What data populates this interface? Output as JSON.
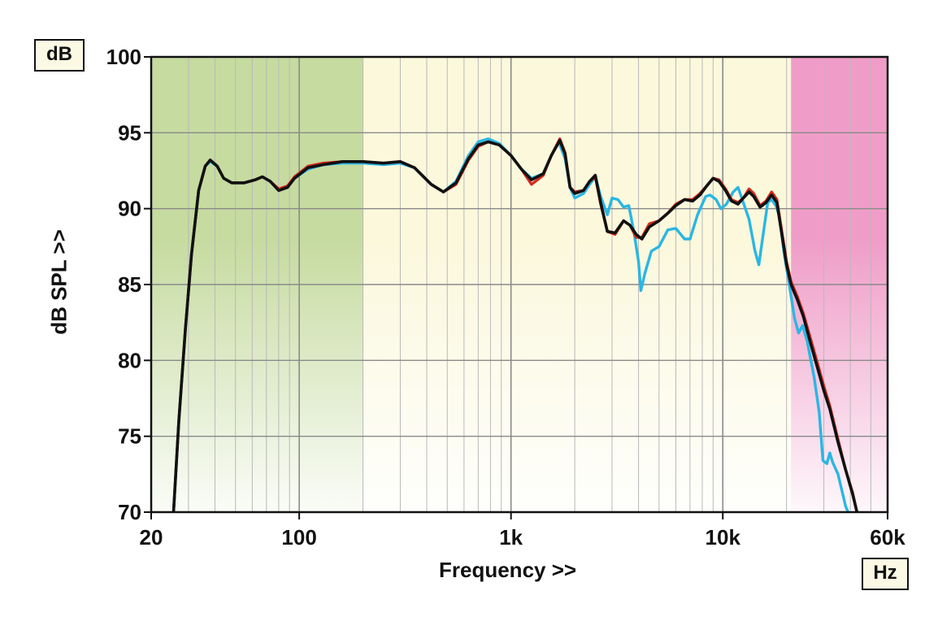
{
  "chart_data": {
    "type": "line",
    "xscale": "log",
    "xlim": [
      20,
      60000
    ],
    "ylim": [
      70,
      100
    ],
    "xlabel": "Frequency >>",
    "ylabel": "dB SPL >>",
    "x_unit": "Hz",
    "y_unit": "dB",
    "grid": true,
    "x_ticks": [
      {
        "value": 20,
        "label": "20"
      },
      {
        "value": 100,
        "label": "100"
      },
      {
        "value": 1000,
        "label": "1k"
      },
      {
        "value": 10000,
        "label": "10k"
      },
      {
        "value": 60000,
        "label": "60k"
      }
    ],
    "y_ticks": [
      {
        "value": 70,
        "label": "70"
      },
      {
        "value": 75,
        "label": "75"
      },
      {
        "value": 80,
        "label": "80"
      },
      {
        "value": 85,
        "label": "85"
      },
      {
        "value": 90,
        "label": "90"
      },
      {
        "value": 95,
        "label": "95"
      },
      {
        "value": 100,
        "label": "100"
      }
    ],
    "bands": [
      {
        "from": 20,
        "to": 200,
        "color": "#c6dba0"
      },
      {
        "from": 200,
        "to": 21000,
        "color": "#fbf8dc"
      },
      {
        "from": 21000,
        "to": 60000,
        "color": "#ef9dc8"
      }
    ],
    "series": [
      {
        "color": "#2ab6e3",
        "points": [
          [
            25.5,
            70
          ],
          [
            27,
            76
          ],
          [
            29,
            82
          ],
          [
            31,
            87
          ],
          [
            33.5,
            91.2
          ],
          [
            36,
            92.8
          ],
          [
            38,
            93.1
          ],
          [
            41,
            92.8
          ],
          [
            44,
            92
          ],
          [
            48,
            91.7
          ],
          [
            55,
            91.7
          ],
          [
            62,
            91.9
          ],
          [
            67,
            92.1
          ],
          [
            73,
            91.8
          ],
          [
            80,
            91.2
          ],
          [
            88,
            91.4
          ],
          [
            95,
            92
          ],
          [
            110,
            92.6
          ],
          [
            130,
            92.9
          ],
          [
            160,
            93
          ],
          [
            200,
            93
          ],
          [
            250,
            92.9
          ],
          [
            300,
            93
          ],
          [
            350,
            92.7
          ],
          [
            420,
            91.6
          ],
          [
            480,
            91.1
          ],
          [
            550,
            91.8
          ],
          [
            630,
            93.5
          ],
          [
            700,
            94.4
          ],
          [
            780,
            94.6
          ],
          [
            880,
            94.3
          ],
          [
            1000,
            93.5
          ],
          [
            1120,
            92.6
          ],
          [
            1250,
            92
          ],
          [
            1420,
            92.3
          ],
          [
            1550,
            93.5
          ],
          [
            1680,
            94.4
          ],
          [
            1800,
            93.3
          ],
          [
            1900,
            91.4
          ],
          [
            2000,
            90.7
          ],
          [
            2200,
            91
          ],
          [
            2350,
            91.6
          ],
          [
            2500,
            92.1
          ],
          [
            2650,
            90.8
          ],
          [
            2850,
            89.6
          ],
          [
            3000,
            90.7
          ],
          [
            3200,
            90.6
          ],
          [
            3400,
            90.1
          ],
          [
            3600,
            90.2
          ],
          [
            3800,
            88.5
          ],
          [
            4000,
            86.5
          ],
          [
            4100,
            84.6
          ],
          [
            4300,
            85.8
          ],
          [
            4600,
            87.2
          ],
          [
            5000,
            87.5
          ],
          [
            5500,
            88.6
          ],
          [
            6000,
            88.7
          ],
          [
            6600,
            88
          ],
          [
            7000,
            88
          ],
          [
            7600,
            89.6
          ],
          [
            8300,
            90.8
          ],
          [
            8700,
            90.9
          ],
          [
            9300,
            90.6
          ],
          [
            9800,
            90
          ],
          [
            10400,
            90.3
          ],
          [
            11200,
            91.1
          ],
          [
            11800,
            91.4
          ],
          [
            12500,
            90.4
          ],
          [
            13300,
            89.3
          ],
          [
            14200,
            87.2
          ],
          [
            14800,
            86.3
          ],
          [
            15400,
            88
          ],
          [
            16300,
            90.4
          ],
          [
            17000,
            90.6
          ],
          [
            17800,
            90.2
          ],
          [
            18500,
            89.5
          ],
          [
            19500,
            87
          ],
          [
            20600,
            85
          ],
          [
            21800,
            82.8
          ],
          [
            22800,
            81.8
          ],
          [
            23800,
            82.3
          ],
          [
            25000,
            81.3
          ],
          [
            27000,
            78.9
          ],
          [
            28500,
            76.6
          ],
          [
            29700,
            73.4
          ],
          [
            31000,
            73.2
          ],
          [
            32000,
            73.9
          ],
          [
            33000,
            73.3
          ],
          [
            35000,
            72.5
          ],
          [
            38000,
            70.4
          ],
          [
            39000,
            70
          ]
        ]
      },
      {
        "color": "#d42b1f",
        "points": [
          [
            25.5,
            70
          ],
          [
            27,
            76
          ],
          [
            29,
            82
          ],
          [
            31,
            87
          ],
          [
            33.5,
            91.2
          ],
          [
            36,
            92.8
          ],
          [
            38,
            93.2
          ],
          [
            41,
            92.8
          ],
          [
            44,
            92
          ],
          [
            48,
            91.7
          ],
          [
            55,
            91.7
          ],
          [
            62,
            91.9
          ],
          [
            67,
            92.1
          ],
          [
            73,
            91.8
          ],
          [
            80,
            91.3
          ],
          [
            88,
            91.5
          ],
          [
            95,
            92.1
          ],
          [
            110,
            92.8
          ],
          [
            130,
            93
          ],
          [
            160,
            93.1
          ],
          [
            200,
            93.1
          ],
          [
            250,
            93
          ],
          [
            300,
            93.1
          ],
          [
            350,
            92.7
          ],
          [
            420,
            91.6
          ],
          [
            480,
            91.1
          ],
          [
            550,
            91.6
          ],
          [
            630,
            93.2
          ],
          [
            700,
            94.1
          ],
          [
            780,
            94.4
          ],
          [
            880,
            94.2
          ],
          [
            1000,
            93.5
          ],
          [
            1120,
            92.6
          ],
          [
            1250,
            91.6
          ],
          [
            1420,
            92.2
          ],
          [
            1550,
            93.5
          ],
          [
            1700,
            94.6
          ],
          [
            1800,
            93.7
          ],
          [
            1900,
            91.4
          ],
          [
            2000,
            91.1
          ],
          [
            2200,
            91.2
          ],
          [
            2350,
            91.8
          ],
          [
            2500,
            92.1
          ],
          [
            2650,
            90.3
          ],
          [
            2850,
            88.5
          ],
          [
            3100,
            88.3
          ],
          [
            3400,
            89.2
          ],
          [
            3650,
            88.9
          ],
          [
            3900,
            88.1
          ],
          [
            4150,
            88.1
          ],
          [
            4500,
            89
          ],
          [
            5000,
            89.2
          ],
          [
            5500,
            89.7
          ],
          [
            6000,
            90.3
          ],
          [
            6600,
            90.6
          ],
          [
            7200,
            90.6
          ],
          [
            7800,
            91
          ],
          [
            8400,
            91.5
          ],
          [
            9000,
            92
          ],
          [
            9600,
            91.9
          ],
          [
            10300,
            91.3
          ],
          [
            11000,
            90.6
          ],
          [
            11800,
            90.4
          ],
          [
            12500,
            90.7
          ],
          [
            13300,
            91.3
          ],
          [
            14000,
            91
          ],
          [
            15000,
            90.2
          ],
          [
            16000,
            90.5
          ],
          [
            17000,
            91.1
          ],
          [
            18000,
            90.6
          ],
          [
            19000,
            88.5
          ],
          [
            20000,
            86.5
          ],
          [
            21000,
            85.2
          ],
          [
            22500,
            84.2
          ],
          [
            24000,
            83.1
          ],
          [
            26000,
            81.4
          ],
          [
            28000,
            79.8
          ],
          [
            30000,
            78.3
          ],
          [
            32000,
            77
          ],
          [
            35000,
            74.8
          ],
          [
            38000,
            72.8
          ],
          [
            41000,
            71.3
          ],
          [
            43000,
            70
          ]
        ]
      },
      {
        "color": "#111111",
        "points": [
          [
            25.5,
            70
          ],
          [
            27,
            76
          ],
          [
            29,
            82
          ],
          [
            31,
            87
          ],
          [
            33.5,
            91.2
          ],
          [
            36,
            92.8
          ],
          [
            38,
            93.2
          ],
          [
            41,
            92.8
          ],
          [
            44,
            92
          ],
          [
            48,
            91.7
          ],
          [
            55,
            91.7
          ],
          [
            62,
            91.9
          ],
          [
            67,
            92.1
          ],
          [
            73,
            91.8
          ],
          [
            80,
            91.2
          ],
          [
            88,
            91.4
          ],
          [
            95,
            92
          ],
          [
            110,
            92.7
          ],
          [
            130,
            92.9
          ],
          [
            160,
            93.1
          ],
          [
            200,
            93.1
          ],
          [
            250,
            93
          ],
          [
            300,
            93.1
          ],
          [
            350,
            92.7
          ],
          [
            420,
            91.6
          ],
          [
            480,
            91.1
          ],
          [
            550,
            91.7
          ],
          [
            630,
            93.3
          ],
          [
            700,
            94.2
          ],
          [
            780,
            94.4
          ],
          [
            880,
            94.2
          ],
          [
            1000,
            93.5
          ],
          [
            1120,
            92.6
          ],
          [
            1250,
            91.9
          ],
          [
            1420,
            92.3
          ],
          [
            1550,
            93.5
          ],
          [
            1700,
            94.5
          ],
          [
            1800,
            93.6
          ],
          [
            1900,
            91.4
          ],
          [
            2000,
            91
          ],
          [
            2200,
            91.2
          ],
          [
            2350,
            91.8
          ],
          [
            2500,
            92.2
          ],
          [
            2650,
            90.4
          ],
          [
            2850,
            88.5
          ],
          [
            3100,
            88.4
          ],
          [
            3400,
            89.2
          ],
          [
            3650,
            88.9
          ],
          [
            3900,
            88.3
          ],
          [
            4150,
            88
          ],
          [
            4500,
            88.8
          ],
          [
            5000,
            89.2
          ],
          [
            5500,
            89.7
          ],
          [
            6000,
            90.2
          ],
          [
            6600,
            90.6
          ],
          [
            7200,
            90.5
          ],
          [
            7800,
            90.9
          ],
          [
            8400,
            91.5
          ],
          [
            9000,
            92
          ],
          [
            9600,
            91.8
          ],
          [
            10300,
            91.2
          ],
          [
            11000,
            90.5
          ],
          [
            11800,
            90.3
          ],
          [
            12500,
            90.7
          ],
          [
            13300,
            91.1
          ],
          [
            14000,
            90.8
          ],
          [
            15000,
            90.1
          ],
          [
            16000,
            90.4
          ],
          [
            17000,
            90.9
          ],
          [
            18000,
            90.4
          ],
          [
            19000,
            88.3
          ],
          [
            20000,
            86.3
          ],
          [
            21000,
            85
          ],
          [
            22500,
            84
          ],
          [
            24000,
            82.9
          ],
          [
            26000,
            81.1
          ],
          [
            28000,
            79.5
          ],
          [
            30000,
            78
          ],
          [
            32000,
            76.8
          ],
          [
            35000,
            74.6
          ],
          [
            38000,
            72.8
          ],
          [
            41000,
            71.2
          ],
          [
            43000,
            70
          ]
        ]
      }
    ]
  }
}
